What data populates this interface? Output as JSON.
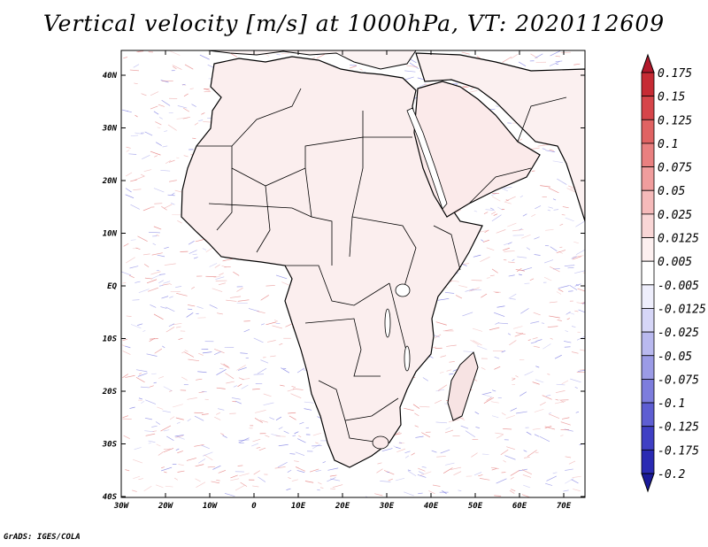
{
  "title": "Vertical velocity [m/s] at 1000hPa, VT: 2020112609",
  "footer": "GrADS: IGES/COLA",
  "lat_ticks": [
    "40N",
    "30N",
    "20N",
    "10N",
    "EQ",
    "10S",
    "20S",
    "30S",
    "40S"
  ],
  "lon_ticks": [
    "30W",
    "20W",
    "10W",
    "0",
    "10E",
    "20E",
    "30E",
    "40E",
    "50E",
    "60E",
    "70E"
  ],
  "colorbar": {
    "labels": [
      "0.175",
      "0.15",
      "0.125",
      "0.1",
      "0.075",
      "0.05",
      "0.025",
      "0.0125",
      "0.005",
      "-0.005",
      "-0.0125",
      "-0.025",
      "-0.05",
      "-0.075",
      "-0.1",
      "-0.125",
      "-0.175",
      "-0.2"
    ],
    "colors": [
      "#b2182b",
      "#c62b34",
      "#d6454a",
      "#e06363",
      "#e98080",
      "#f09d9d",
      "#f5baba",
      "#f9d6d6",
      "#fdf0f0",
      "#ffffff",
      "#eeeefc",
      "#d6d6f7",
      "#b9b9ef",
      "#9b9be6",
      "#7d7ddd",
      "#5e5ed2",
      "#3f3fc4",
      "#2a2ab3",
      "#1a1a99"
    ]
  },
  "map": {
    "region": "Africa and Middle East",
    "lon_range": [
      -30,
      75
    ],
    "lat_range": [
      -40,
      45
    ],
    "positive_color": "#e06666",
    "negative_color": "#6666dd"
  }
}
